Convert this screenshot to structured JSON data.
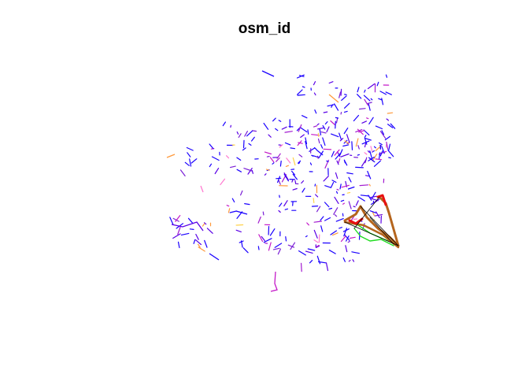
{
  "plot": {
    "title": "osm_id"
  },
  "colors": {
    "background": "#ffffff",
    "title": "#000000",
    "segment_palette": [
      "#1a00ff",
      "#5a00e6",
      "#7a1fd6",
      "#a21ad0",
      "#c419c8",
      "#ff7ad0",
      "#ff9a3c",
      "#ffd24a"
    ],
    "highlight_brown": "#b5651d",
    "highlight_red": "#e81010",
    "highlight_green": "#22dd22",
    "highlight_black": "#000000"
  }
}
